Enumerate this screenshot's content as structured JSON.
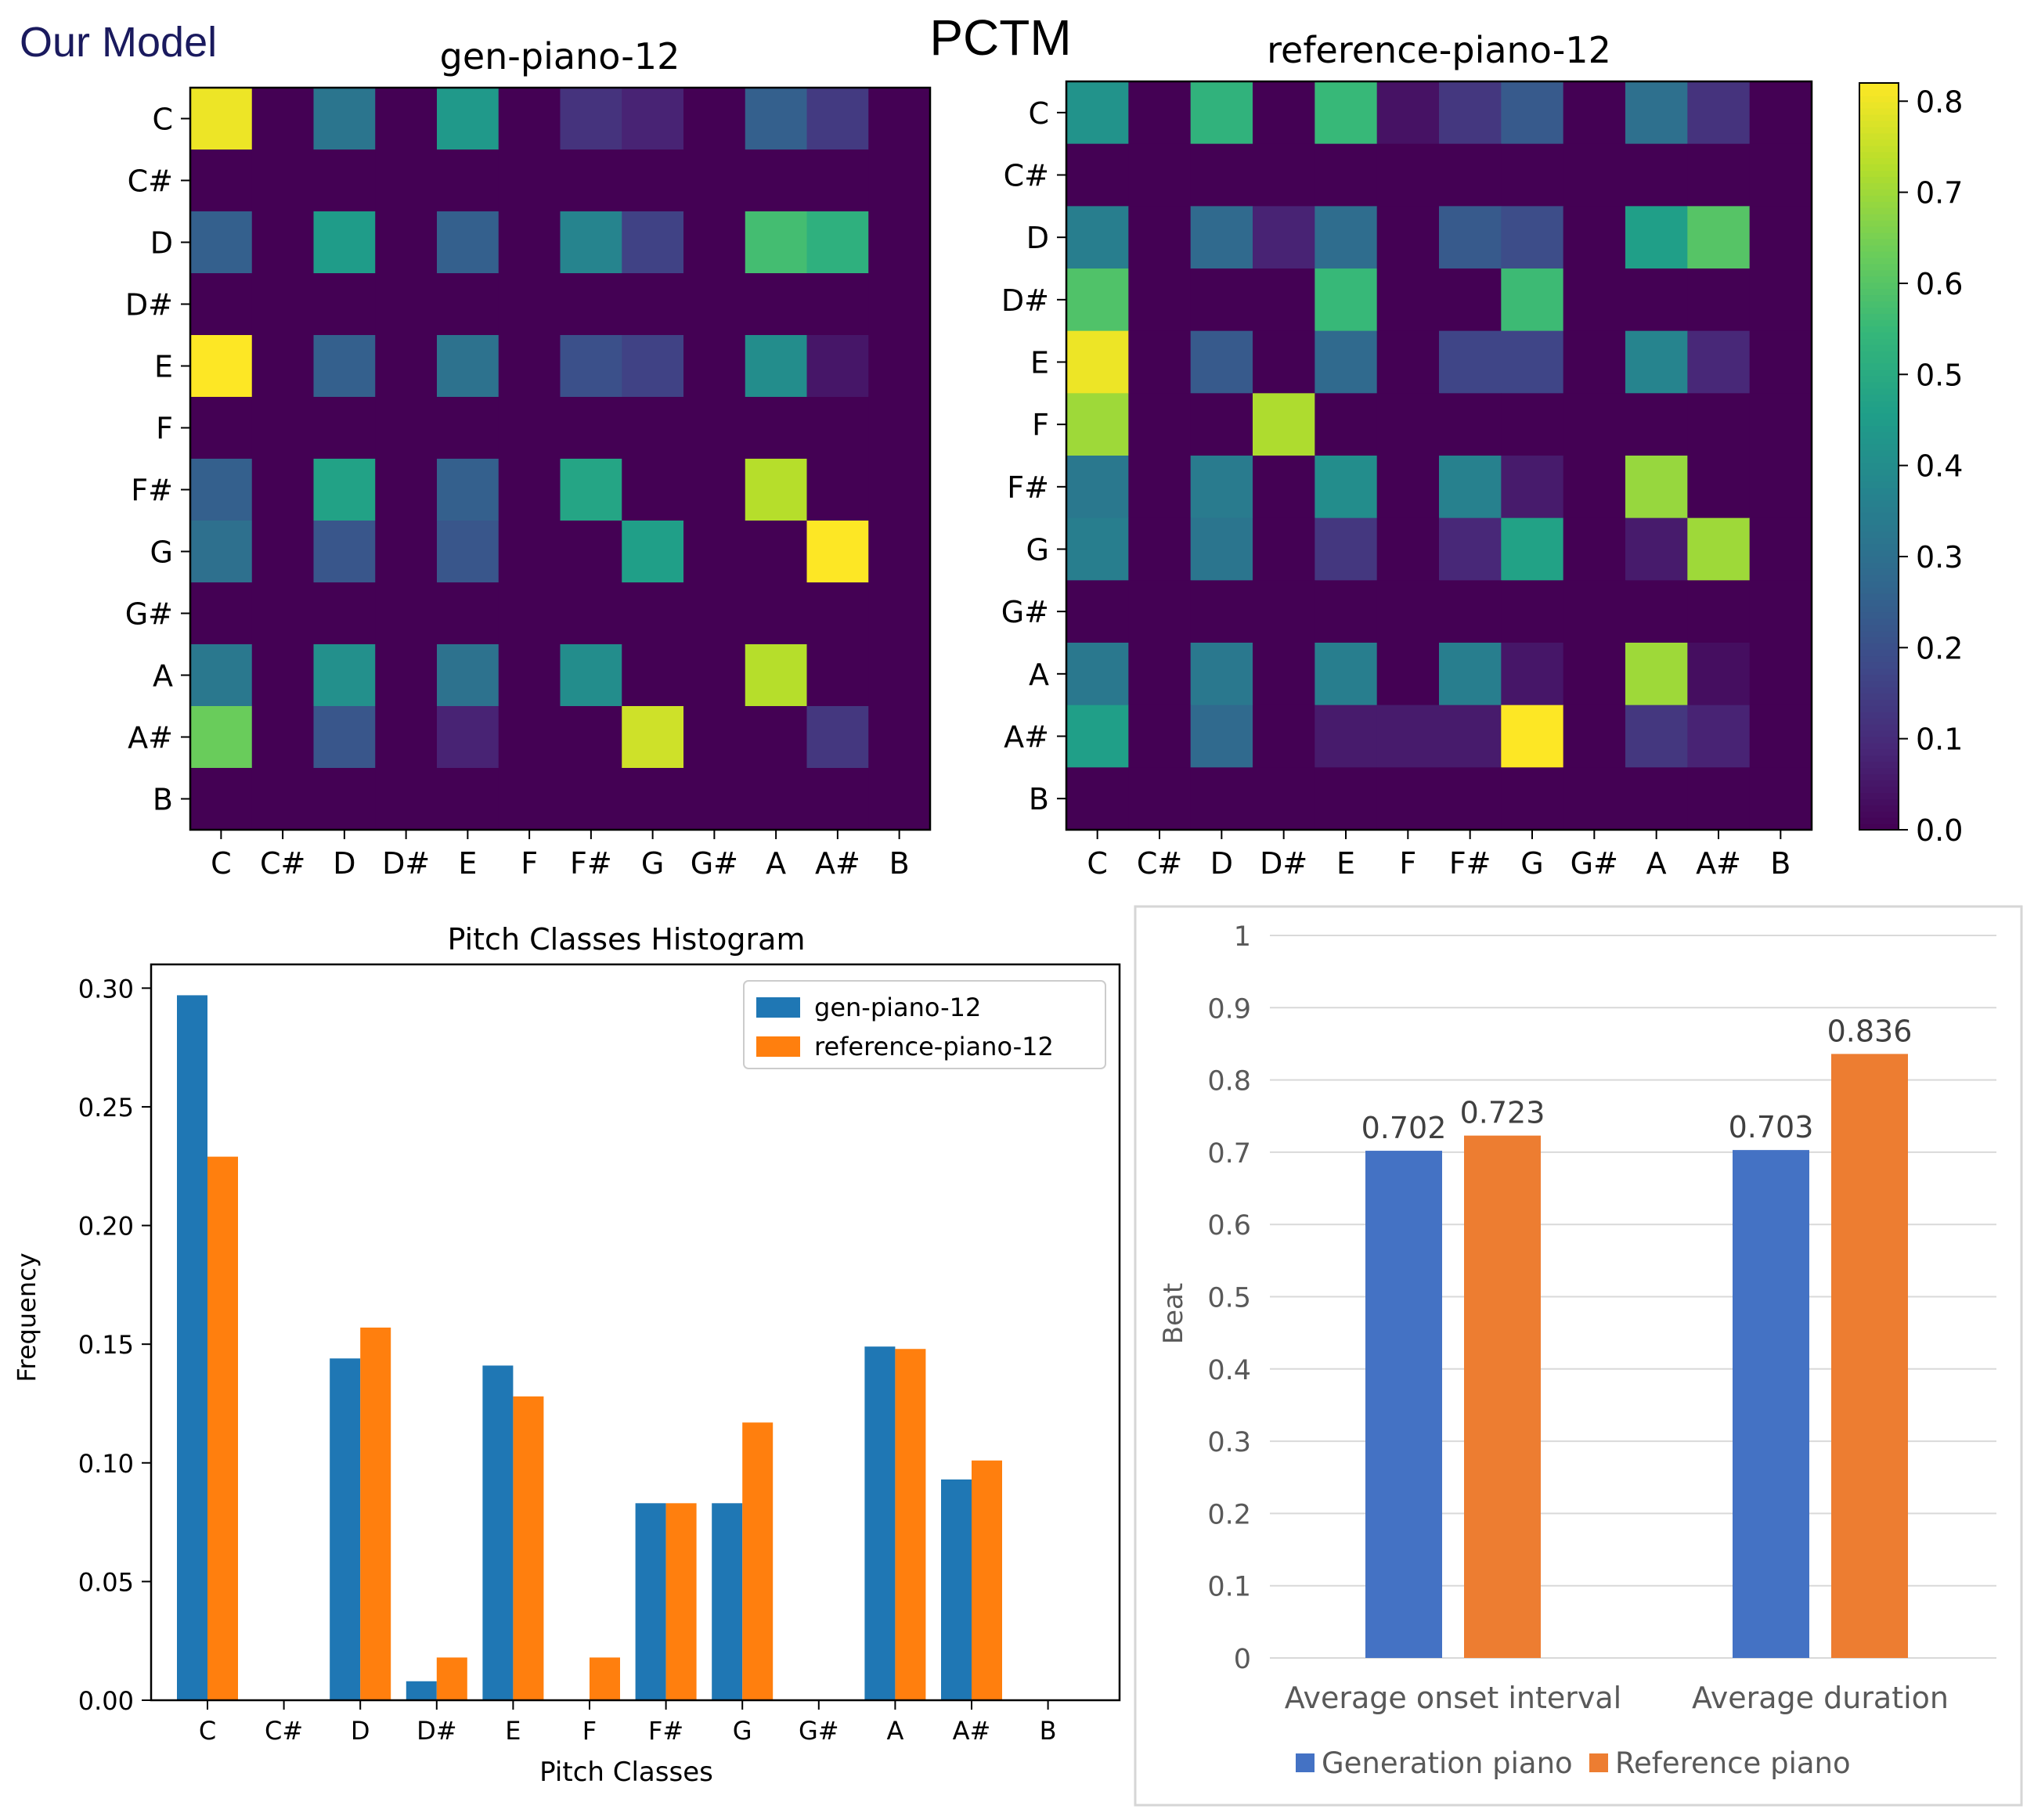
{
  "header": {
    "model_label": "Our Model",
    "main_title": "PCTM"
  },
  "colors": {
    "gen_bar": "#1f77b4",
    "ref_bar": "#ff7f0e",
    "gen_bar2": "#4472c4",
    "ref_bar2": "#ed7d31",
    "model_label": "#1a1a5e",
    "grid": "#d9d9d9"
  },
  "chart_data": [
    {
      "id": "heatmap-gen",
      "type": "heatmap",
      "title": "gen-piano-12",
      "rows": [
        "C",
        "C#",
        "D",
        "D#",
        "E",
        "F",
        "F#",
        "G",
        "G#",
        "A",
        "A#",
        "B"
      ],
      "cols": [
        "C",
        "C#",
        "D",
        "D#",
        "E",
        "F",
        "F#",
        "G",
        "G#",
        "A",
        "A#",
        "B"
      ],
      "colormap": "viridis",
      "vmin": 0,
      "vmax": 0.82,
      "values": [
        [
          0.8,
          0,
          0.32,
          0,
          0.44,
          0,
          0.12,
          0.08,
          0,
          0.25,
          0.14,
          0
        ],
        [
          0,
          0,
          0,
          0,
          0,
          0,
          0,
          0,
          0,
          0,
          0,
          0
        ],
        [
          0.25,
          0,
          0.45,
          0,
          0.25,
          0,
          0.37,
          0.16,
          0,
          0.57,
          0.52,
          0
        ],
        [
          0,
          0,
          0,
          0,
          0,
          0,
          0,
          0,
          0,
          0,
          0,
          0
        ],
        [
          0.82,
          0,
          0.25,
          0,
          0.31,
          0,
          0.2,
          0.16,
          0,
          0.4,
          0.05,
          0
        ],
        [
          0,
          0,
          0,
          0,
          0,
          0,
          0,
          0,
          0,
          0,
          0,
          0
        ],
        [
          0.25,
          0,
          0.47,
          0,
          0.25,
          0,
          0.48,
          0,
          0,
          0.73,
          0,
          0
        ],
        [
          0.3,
          0,
          0.22,
          0,
          0.22,
          0,
          0,
          0.46,
          0,
          0,
          0.82,
          0
        ],
        [
          0,
          0,
          0,
          0,
          0,
          0,
          0,
          0,
          0,
          0,
          0,
          0
        ],
        [
          0.33,
          0,
          0.41,
          0,
          0.31,
          0,
          0.4,
          0,
          0,
          0.73,
          0,
          0
        ],
        [
          0.63,
          0,
          0.22,
          0,
          0.08,
          0,
          0,
          0.76,
          0,
          0,
          0.13,
          0
        ],
        [
          0,
          0,
          0,
          0,
          0,
          0,
          0,
          0,
          0,
          0,
          0,
          0
        ]
      ]
    },
    {
      "id": "heatmap-ref",
      "type": "heatmap",
      "title": "reference-piano-12",
      "rows": [
        "C",
        "C#",
        "D",
        "D#",
        "E",
        "F",
        "F#",
        "G",
        "G#",
        "A",
        "A#",
        "B"
      ],
      "cols": [
        "C",
        "C#",
        "D",
        "D#",
        "E",
        "F",
        "F#",
        "G",
        "G#",
        "A",
        "A#",
        "B"
      ],
      "colormap": "viridis",
      "vmin": 0,
      "vmax": 0.82,
      "colorbar_ticks": [
        0.0,
        0.1,
        0.2,
        0.3,
        0.4,
        0.5,
        0.6,
        0.7,
        0.8
      ],
      "colorbar_tick_labels": [
        "0.0",
        "0.1",
        "0.2",
        "0.3",
        "0.4",
        "0.5",
        "0.6",
        "0.7",
        "0.8"
      ],
      "values": [
        [
          0.42,
          0,
          0.53,
          0,
          0.55,
          0.04,
          0.13,
          0.23,
          0,
          0.3,
          0.12,
          0
        ],
        [
          0,
          0,
          0,
          0,
          0,
          0,
          0,
          0,
          0,
          0,
          0,
          0
        ],
        [
          0.35,
          0,
          0.28,
          0.08,
          0.29,
          0,
          0.23,
          0.19,
          0,
          0.46,
          0.6,
          0
        ],
        [
          0.59,
          0,
          0,
          0,
          0.55,
          0,
          0,
          0.56,
          0,
          0,
          0,
          0
        ],
        [
          0.8,
          0,
          0.23,
          0,
          0.28,
          0,
          0.17,
          0.17,
          0,
          0.37,
          0.09,
          0
        ],
        [
          0.7,
          0,
          0,
          0.72,
          0,
          0,
          0,
          0,
          0,
          0,
          0,
          0
        ],
        [
          0.33,
          0,
          0.34,
          0,
          0.4,
          0,
          0.36,
          0.06,
          0,
          0.69,
          0,
          0
        ],
        [
          0.35,
          0,
          0.32,
          0,
          0.13,
          0,
          0.09,
          0.47,
          0,
          0.06,
          0.7,
          0
        ],
        [
          0,
          0,
          0,
          0,
          0,
          0,
          0,
          0,
          0,
          0,
          0,
          0
        ],
        [
          0.33,
          0,
          0.33,
          0,
          0.35,
          0,
          0.35,
          0.05,
          0,
          0.7,
          0.03,
          0
        ],
        [
          0.46,
          0,
          0.28,
          0,
          0.06,
          0.06,
          0.06,
          0.82,
          0,
          0.13,
          0.08,
          0
        ],
        [
          0,
          0,
          0,
          0,
          0,
          0,
          0,
          0,
          0,
          0,
          0,
          0
        ]
      ]
    },
    {
      "id": "pitch-histogram",
      "type": "bar",
      "title": "Pitch Classes Histogram",
      "xlabel": "Pitch Classes",
      "ylabel": "Frequency",
      "categories": [
        "C",
        "C#",
        "D",
        "D#",
        "E",
        "F",
        "F#",
        "G",
        "G#",
        "A",
        "A#",
        "B"
      ],
      "ylim": [
        0,
        0.31
      ],
      "yticks": [
        0.0,
        0.05,
        0.1,
        0.15,
        0.2,
        0.25,
        0.3
      ],
      "ytick_labels": [
        "0.00",
        "0.05",
        "0.10",
        "0.15",
        "0.20",
        "0.25",
        "0.30"
      ],
      "legend_position": "top-right",
      "series": [
        {
          "name": "gen-piano-12",
          "values": [
            0.297,
            0,
            0.144,
            0.008,
            0.141,
            0,
            0.083,
            0.083,
            0,
            0.149,
            0.093,
            0
          ]
        },
        {
          "name": "reference-piano-12",
          "values": [
            0.229,
            0,
            0.157,
            0.018,
            0.128,
            0.018,
            0.083,
            0.117,
            0,
            0.148,
            0.101,
            0
          ]
        }
      ]
    },
    {
      "id": "beat-bars",
      "type": "bar",
      "title": "",
      "xlabel": "",
      "ylabel": "Beat",
      "categories": [
        "Average onset interval",
        "Average duration"
      ],
      "ylim": [
        0,
        1
      ],
      "yticks": [
        0,
        0.1,
        0.2,
        0.3,
        0.4,
        0.5,
        0.6,
        0.7,
        0.8,
        0.9,
        1
      ],
      "ytick_labels": [
        "0",
        "0.1",
        "0.2",
        "0.3",
        "0.4",
        "0.5",
        "0.6",
        "0.7",
        "0.8",
        "0.9",
        "1"
      ],
      "grid": true,
      "legend_position": "bottom",
      "series": [
        {
          "name": "Generation piano",
          "values": [
            0.702,
            0.703
          ],
          "labels": [
            "0.702",
            "0.703"
          ]
        },
        {
          "name": "Reference piano",
          "values": [
            0.723,
            0.836
          ],
          "labels": [
            "0.723",
            "0.836"
          ]
        }
      ]
    }
  ]
}
